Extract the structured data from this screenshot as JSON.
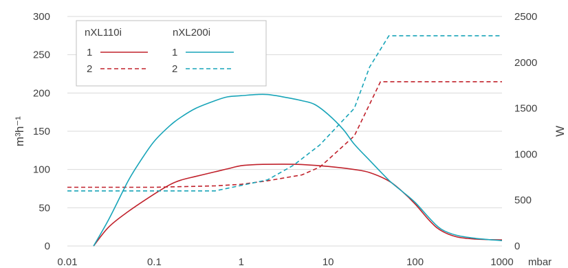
{
  "chart_data": {
    "type": "line",
    "x_scale": "log",
    "x_ticks": [
      "0.01",
      "0.1",
      "1",
      "10",
      "100",
      "1000"
    ],
    "x_unit": "mbar",
    "xlim": [
      0.01,
      1000
    ],
    "ylabel": "m³h⁻¹",
    "ylim": [
      0,
      300
    ],
    "y_ticks": [
      "0",
      "50",
      "100",
      "150",
      "200",
      "250",
      "300"
    ],
    "y2label": "W",
    "y2lim": [
      0,
      2500
    ],
    "y2_ticks": [
      "0",
      "500",
      "1000",
      "1500",
      "2000",
      "2500"
    ],
    "grid": "horizontal",
    "legend": {
      "position": "top-left",
      "groups": [
        {
          "title": "nXL110i",
          "color": "#c0202a",
          "items": [
            "1",
            "2"
          ]
        },
        {
          "title": "nXL200i",
          "color": "#17a4b8",
          "items": [
            "1",
            "2"
          ]
        }
      ]
    },
    "series": [
      {
        "name": "nXL110i 1",
        "axis": "left",
        "color": "#c0202a",
        "dash": "solid",
        "points": [
          [
            0.02,
            0
          ],
          [
            0.03,
            25
          ],
          [
            0.05,
            45
          ],
          [
            0.1,
            68
          ],
          [
            0.15,
            80
          ],
          [
            0.2,
            86
          ],
          [
            0.3,
            91
          ],
          [
            0.5,
            97
          ],
          [
            0.7,
            101
          ],
          [
            1,
            105
          ],
          [
            1.5,
            106.5
          ],
          [
            3,
            107
          ],
          [
            5,
            106.5
          ],
          [
            10,
            104
          ],
          [
            20,
            100
          ],
          [
            30,
            96
          ],
          [
            50,
            85
          ],
          [
            70,
            72
          ],
          [
            100,
            55
          ],
          [
            150,
            32
          ],
          [
            200,
            20
          ],
          [
            300,
            12
          ],
          [
            500,
            9
          ],
          [
            1000,
            8
          ]
        ]
      },
      {
        "name": "nXL110i 2",
        "axis": "right",
        "color": "#c0202a",
        "dash": "dashed",
        "points": [
          [
            0.01,
            640
          ],
          [
            0.1,
            640
          ],
          [
            0.5,
            655
          ],
          [
            1,
            672
          ],
          [
            2,
            710
          ],
          [
            5,
            775
          ],
          [
            8,
            860
          ],
          [
            10,
            940
          ],
          [
            20,
            1200
          ],
          [
            40,
            1790
          ],
          [
            1000,
            1790
          ]
        ]
      },
      {
        "name": "nXL200i 1",
        "axis": "left",
        "color": "#17a4b8",
        "dash": "solid",
        "points": [
          [
            0.02,
            0
          ],
          [
            0.03,
            35
          ],
          [
            0.05,
            85
          ],
          [
            0.07,
            112
          ],
          [
            0.1,
            137
          ],
          [
            0.15,
            157
          ],
          [
            0.2,
            168
          ],
          [
            0.3,
            180
          ],
          [
            0.5,
            190
          ],
          [
            0.7,
            195
          ],
          [
            1,
            196.5
          ],
          [
            1.5,
            198
          ],
          [
            2,
            198
          ],
          [
            3,
            195
          ],
          [
            5,
            190
          ],
          [
            7,
            185
          ],
          [
            10,
            172
          ],
          [
            15,
            152
          ],
          [
            20,
            133
          ],
          [
            30,
            112
          ],
          [
            50,
            86
          ],
          [
            70,
            72
          ],
          [
            100,
            57
          ],
          [
            150,
            35
          ],
          [
            200,
            22
          ],
          [
            300,
            14
          ],
          [
            500,
            10
          ],
          [
            1000,
            7
          ]
        ]
      },
      {
        "name": "nXL200i 2",
        "axis": "right",
        "color": "#17a4b8",
        "dash": "dashed",
        "points": [
          [
            0.01,
            600
          ],
          [
            0.1,
            600
          ],
          [
            0.5,
            600
          ],
          [
            1,
            660
          ],
          [
            2,
            720
          ],
          [
            4,
            880
          ],
          [
            8,
            1100
          ],
          [
            20,
            1500
          ],
          [
            30,
            1950
          ],
          [
            50,
            2290
          ],
          [
            1000,
            2290
          ]
        ]
      }
    ]
  }
}
